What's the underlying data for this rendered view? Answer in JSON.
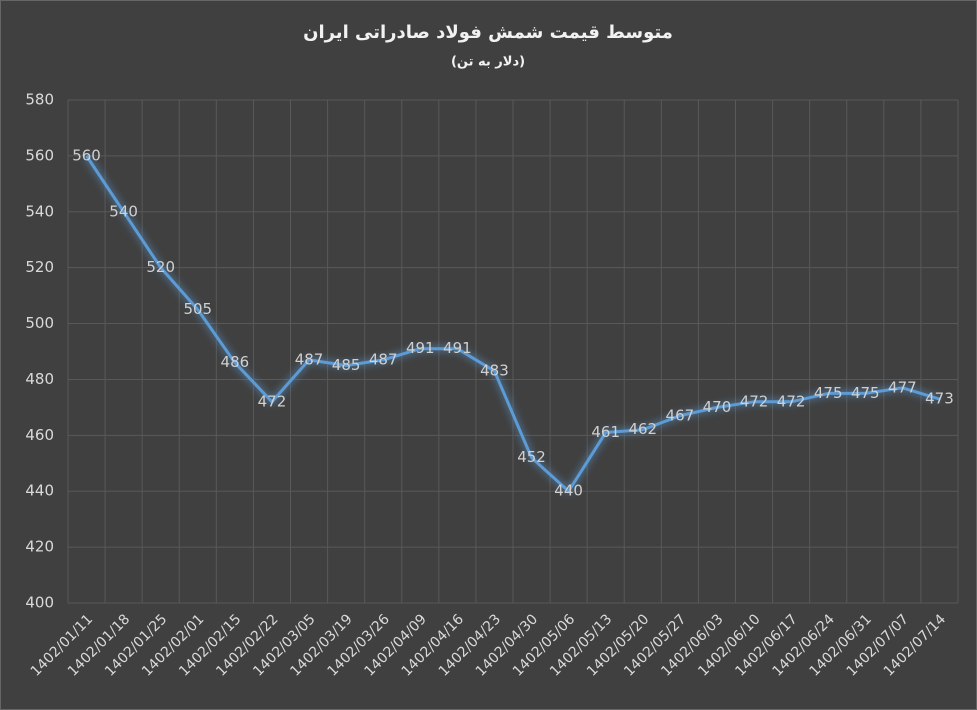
{
  "chart_data": {
    "type": "line",
    "title": "متوسط قیمت شمش فولاد صادراتی ایران",
    "subtitle": "(دلار به تن)",
    "categories": [
      "1402/01/11",
      "1402/01/18",
      "1402/01/25",
      "1402/02/01",
      "1402/02/15",
      "1402/02/22",
      "1402/03/05",
      "1402/03/19",
      "1402/03/26",
      "1402/04/09",
      "1402/04/16",
      "1402/04/23",
      "1402/04/30",
      "1402/05/06",
      "1402/05/13",
      "1402/05/20",
      "1402/05/27",
      "1402/06/03",
      "1402/06/10",
      "1402/06/17",
      "1402/06/24",
      "1402/06/31",
      "1402/07/07",
      "1402/07/14"
    ],
    "values": [
      560,
      540,
      520,
      505,
      486,
      472,
      487,
      485,
      487,
      491,
      491,
      483,
      452,
      440,
      461,
      462,
      467,
      470,
      472,
      472,
      475,
      475,
      477,
      473
    ],
    "color": "#5b9bd5",
    "ylim": [
      400,
      580
    ],
    "yticks": [
      400,
      420,
      440,
      460,
      480,
      500,
      520,
      540,
      560,
      580
    ],
    "grid": true
  }
}
